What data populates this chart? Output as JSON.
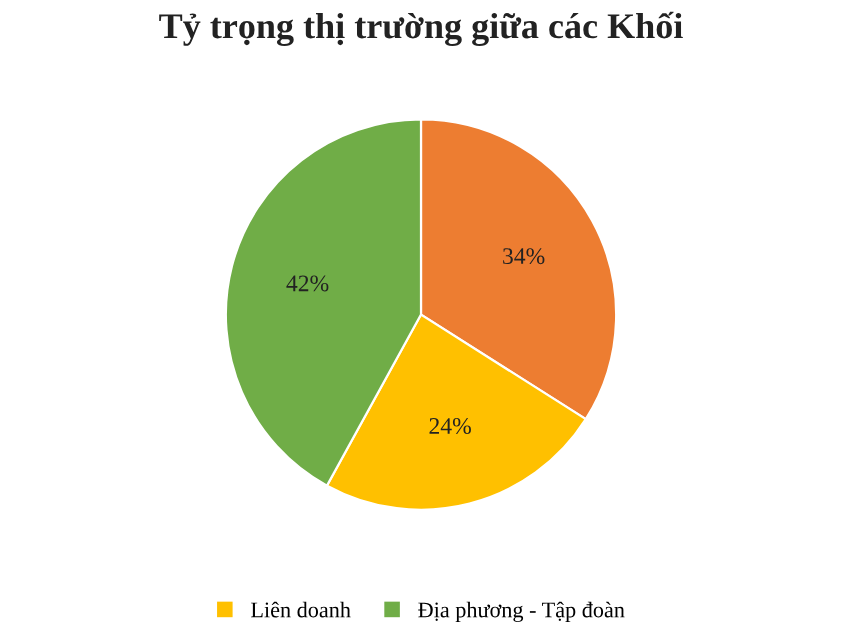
{
  "chart_data": {
    "type": "pie",
    "title": "Tỷ trọng thị trường giữa các Khối",
    "categories": [
      null,
      "Liên doanh",
      "Địa phương - Tập đoàn"
    ],
    "values": [
      34,
      24,
      42
    ],
    "colors": [
      "#ed7d31",
      "#ffc000",
      "#70ad47"
    ],
    "value_labels": [
      "34%",
      "24%",
      "42%"
    ],
    "legend": "bottom"
  }
}
